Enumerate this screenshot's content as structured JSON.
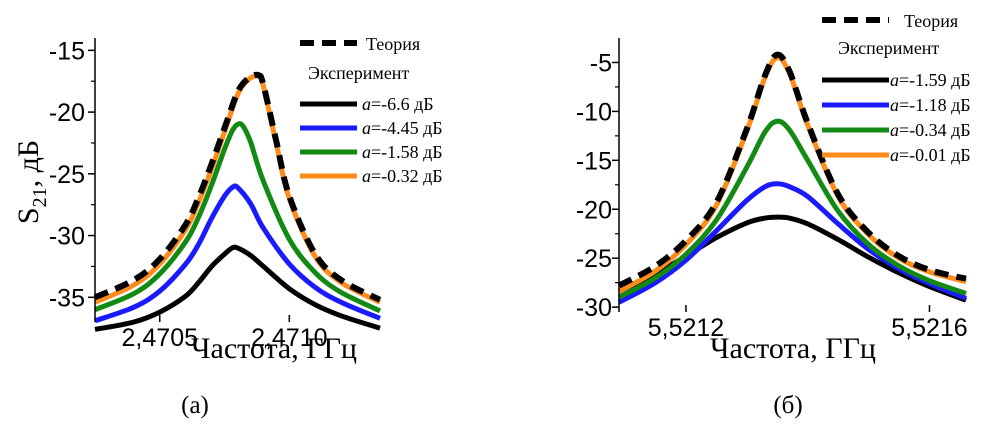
{
  "colors": {
    "theory": "#000000",
    "black": "#000000",
    "blue": "#1a1aff",
    "green": "#138a13",
    "orange": "#ff8c1a"
  },
  "chart_data": [
    {
      "type": "line",
      "panel_label": "(a)",
      "xlabel": "Частота, ГГц",
      "ylabel_main": "S",
      "ylabel_sub": "21",
      "ylabel_tail": ", дБ",
      "xlim": [
        2.47025,
        2.47135
      ],
      "ylim": [
        -37,
        -14
      ],
      "xticks": [
        2.4705,
        2.471
      ],
      "xtick_labels": [
        "2,4705",
        "2,4710"
      ],
      "yticks": [
        -15,
        -20,
        -25,
        -30,
        -35
      ],
      "ytick_labels": [
        "-15",
        "-20",
        "-25",
        "-30",
        "-35"
      ],
      "legend_placement": "top-right",
      "legend": {
        "theory_label": "Теория",
        "experiment_label": "Эксперимент",
        "a_symbol": "a",
        "entries": [
          {
            "text": "=-6.6 дБ",
            "color": "#000000"
          },
          {
            "text": "=-4.45 дБ",
            "color": "#1a1aff"
          },
          {
            "text": "=-1.58 дБ",
            "color": "#138a13"
          },
          {
            "text": "=-0.32 дБ",
            "color": "#ff8c1a"
          }
        ]
      },
      "series": [
        {
          "name": "=-6.6 дБ",
          "color": "#000000",
          "dashed": false,
          "x": [
            2.47025,
            2.4704,
            2.4705,
            2.4706,
            2.47065,
            2.4707,
            2.47075,
            2.47078,
            2.4708,
            2.47085,
            2.4709,
            2.471,
            2.4711,
            2.4712,
            2.47135
          ],
          "y": [
            -37.6,
            -37.0,
            -36.2,
            -34.9,
            -33.8,
            -32.5,
            -31.5,
            -31.0,
            -31.0,
            -31.6,
            -32.5,
            -34.3,
            -35.6,
            -36.5,
            -37.5
          ]
        },
        {
          "name": "=-4.45 дБ",
          "color": "#1a1aff",
          "dashed": false,
          "x": [
            2.47025,
            2.4704,
            2.4705,
            2.4706,
            2.47065,
            2.4707,
            2.47075,
            2.47078,
            2.4708,
            2.47085,
            2.4709,
            2.471,
            2.4711,
            2.4712,
            2.47135
          ],
          "y": [
            -36.9,
            -35.8,
            -34.5,
            -32.3,
            -30.7,
            -28.6,
            -26.8,
            -26.1,
            -26.1,
            -27.4,
            -29.4,
            -32.3,
            -34.2,
            -35.4,
            -36.7
          ]
        },
        {
          "name": "=-1.58 дБ",
          "color": "#138a13",
          "dashed": false,
          "x": [
            2.47025,
            2.4704,
            2.4705,
            2.4706,
            2.47065,
            2.4707,
            2.47075,
            2.47078,
            2.4708,
            2.47082,
            2.47085,
            2.4709,
            2.471,
            2.4711,
            2.4712,
            2.47135
          ],
          "y": [
            -36.0,
            -34.7,
            -33.1,
            -30.5,
            -28.5,
            -25.9,
            -23.0,
            -21.5,
            -21.0,
            -21.1,
            -22.4,
            -25.6,
            -30.3,
            -33.0,
            -34.6,
            -36.1
          ]
        },
        {
          "name": "=-0.32 дБ",
          "color": "#ff8c1a",
          "dashed": false,
          "x": [
            2.47025,
            2.4704,
            2.4705,
            2.4706,
            2.47065,
            2.4707,
            2.47075,
            2.4708,
            2.47084,
            2.47088,
            2.4709,
            2.47095,
            2.471,
            2.4711,
            2.4712,
            2.47135
          ],
          "y": [
            -35.4,
            -34.0,
            -32.3,
            -29.5,
            -27.3,
            -24.6,
            -21.6,
            -18.6,
            -17.4,
            -17.1,
            -17.9,
            -22.6,
            -27.0,
            -31.7,
            -33.8,
            -35.4
          ]
        },
        {
          "name": "Теория",
          "color": "#000000",
          "dashed": true,
          "x": [
            2.47025,
            2.4704,
            2.4705,
            2.4706,
            2.47065,
            2.4707,
            2.47075,
            2.4708,
            2.47084,
            2.47088,
            2.4709,
            2.47095,
            2.471,
            2.4711,
            2.4712,
            2.47135
          ],
          "y": [
            -35.0,
            -33.6,
            -31.9,
            -29.1,
            -26.9,
            -24.2,
            -21.3,
            -18.4,
            -17.3,
            -17.0,
            -17.8,
            -22.4,
            -26.8,
            -31.5,
            -33.6,
            -35.2
          ]
        }
      ]
    },
    {
      "type": "line",
      "panel_label": "(б)",
      "xlabel": "Частота, ГГц",
      "xlim": [
        5.52109,
        5.52166
      ],
      "ylim": [
        -30.5,
        -2.5
      ],
      "xticks": [
        5.5212,
        5.5216
      ],
      "xtick_labels": [
        "5,5212",
        "5,5216"
      ],
      "yticks": [
        -5,
        -10,
        -15,
        -20,
        -25,
        -30
      ],
      "ytick_labels": [
        "-5",
        "-10",
        "-15",
        "-20",
        "-25",
        "-30"
      ],
      "legend_placement": "top-right",
      "legend": {
        "theory_label": "Теория",
        "experiment_label": "Эксперимент",
        "a_symbol": "a",
        "entries": [
          {
            "text": "=-1.59 дБ",
            "color": "#000000"
          },
          {
            "text": "=-1.18 дБ",
            "color": "#1a1aff"
          },
          {
            "text": "=-0.34 дБ",
            "color": "#138a13"
          },
          {
            "text": "=-0.01 дБ",
            "color": "#ff8c1a"
          }
        ]
      },
      "series": [
        {
          "name": "=-1.59 дБ",
          "color": "#000000",
          "dashed": false,
          "x": [
            5.52109,
            5.52115,
            5.5212,
            5.52125,
            5.5213,
            5.52133,
            5.52135,
            5.52137,
            5.5214,
            5.52145,
            5.5215,
            5.52155,
            5.5216,
            5.52166
          ],
          "y": [
            -28.4,
            -26.6,
            -24.8,
            -22.9,
            -21.4,
            -20.9,
            -20.8,
            -20.9,
            -21.5,
            -23.1,
            -24.9,
            -26.5,
            -27.9,
            -29.3
          ]
        },
        {
          "name": "=-1.18 дБ",
          "color": "#1a1aff",
          "dashed": false,
          "x": [
            5.52109,
            5.52115,
            5.5212,
            5.52125,
            5.5213,
            5.52133,
            5.52135,
            5.52137,
            5.5214,
            5.52145,
            5.5215,
            5.52155,
            5.5216,
            5.52166
          ],
          "y": [
            -29.5,
            -27.5,
            -25.2,
            -22.2,
            -19.1,
            -17.7,
            -17.4,
            -17.7,
            -18.7,
            -21.5,
            -24.1,
            -26.1,
            -27.6,
            -29.1
          ]
        },
        {
          "name": "=-0.34 дБ",
          "color": "#138a13",
          "dashed": false,
          "x": [
            5.52109,
            5.52115,
            5.5212,
            5.52125,
            5.5213,
            5.52133,
            5.52135,
            5.52137,
            5.5214,
            5.52145,
            5.5215,
            5.52155,
            5.5216,
            5.52166
          ],
          "y": [
            -29.0,
            -27.0,
            -24.6,
            -21.1,
            -15.7,
            -12.1,
            -11.0,
            -11.9,
            -15.0,
            -20.2,
            -23.6,
            -25.8,
            -27.3,
            -28.6
          ]
        },
        {
          "name": "=-0.01 дБ",
          "color": "#ff8c1a",
          "dashed": false,
          "x": [
            5.52109,
            5.52115,
            5.5212,
            5.52125,
            5.5213,
            5.52133,
            5.52135,
            5.52137,
            5.5214,
            5.52145,
            5.5215,
            5.52155,
            5.5216,
            5.52166
          ],
          "y": [
            -28.4,
            -26.3,
            -23.6,
            -19.6,
            -12.0,
            -6.5,
            -4.5,
            -6.1,
            -11.4,
            -18.7,
            -22.6,
            -25.0,
            -26.4,
            -27.4
          ]
        },
        {
          "name": "Теория",
          "color": "#000000",
          "dashed": true,
          "x": [
            5.52109,
            5.52115,
            5.5212,
            5.52125,
            5.5213,
            5.52133,
            5.52135,
            5.52137,
            5.5214,
            5.52145,
            5.5215,
            5.52155,
            5.5216,
            5.52166
          ],
          "y": [
            -27.8,
            -25.8,
            -23.2,
            -19.3,
            -11.8,
            -6.3,
            -4.2,
            -5.9,
            -11.2,
            -18.5,
            -22.4,
            -24.8,
            -26.2,
            -27.1
          ]
        }
      ]
    }
  ]
}
